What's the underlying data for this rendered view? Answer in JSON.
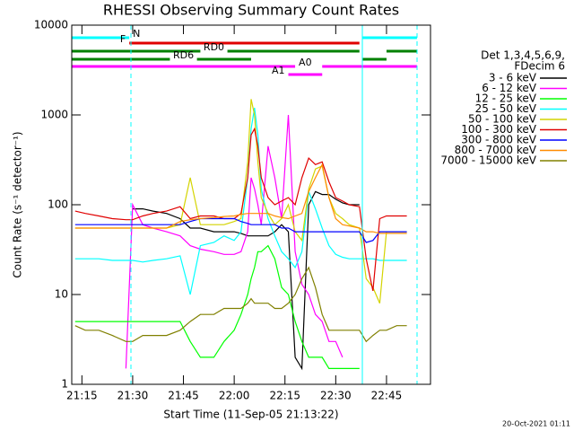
{
  "chart_data": {
    "type": "line",
    "title": "RHESSI Observing Summary Count Rates",
    "x_label": "Start Time (11-Sep-05 21:13:22)",
    "y_label": "Count Rate (s⁻¹ detector⁻¹)",
    "footer": "20-Oct-2021 01:11",
    "legend_title": [
      "Det 1,3,4,5,6,9,",
      "FDecim 6"
    ],
    "log_y": true,
    "xlim": [
      "21:12",
      "22:58"
    ],
    "xticks": [
      "21:15",
      "21:30",
      "21:45",
      "22:00",
      "22:15",
      "22:30",
      "22:45"
    ],
    "ylim": [
      1,
      10000
    ],
    "yticks": [
      1,
      10,
      100,
      1000,
      10000
    ],
    "x": [
      "21:13",
      "21:16",
      "21:20",
      "21:24",
      "21:28",
      "21:30",
      "21:33",
      "21:36",
      "21:40",
      "21:44",
      "21:47",
      "21:50",
      "21:54",
      "21:57",
      "22:00",
      "22:02",
      "22:04",
      "22:05",
      "22:06",
      "22:07",
      "22:08",
      "22:10",
      "22:12",
      "22:14",
      "22:16",
      "22:18",
      "22:20",
      "22:22",
      "22:24",
      "22:26",
      "22:28",
      "22:30",
      "22:32",
      "22:34",
      "22:37",
      "22:39",
      "22:41",
      "22:43",
      "22:45",
      "22:48",
      "22:51"
    ],
    "series": [
      {
        "name": "3 - 6 keV",
        "color": "#000000",
        "values": [
          null,
          null,
          null,
          null,
          null,
          90,
          90,
          85,
          80,
          70,
          55,
          55,
          50,
          50,
          50,
          48,
          45,
          45,
          45,
          45,
          45,
          45,
          50,
          60,
          50,
          2,
          1.5,
          100,
          140,
          130,
          130,
          115,
          105,
          100,
          100,
          null,
          null,
          null,
          null,
          null,
          null
        ]
      },
      {
        "name": "6 - 12 keV",
        "color": "#ff00ff",
        "values": [
          null,
          null,
          null,
          null,
          1.5,
          100,
          60,
          55,
          50,
          45,
          35,
          32,
          30,
          28,
          28,
          30,
          50,
          200,
          150,
          100,
          60,
          450,
          200,
          70,
          1000,
          30,
          13,
          10,
          6,
          5,
          3,
          3,
          2,
          null,
          null,
          null,
          null,
          null,
          null,
          null,
          null
        ]
      },
      {
        "name": "12 - 25 keV",
        "color": "#00ff00",
        "values": [
          5,
          5,
          5,
          5,
          5,
          5,
          5,
          5,
          5,
          5,
          3,
          2,
          2,
          3,
          4,
          6,
          10,
          15,
          20,
          30,
          30,
          35,
          25,
          12,
          10,
          5,
          3,
          2,
          2,
          2,
          1.5,
          1.5,
          1.5,
          1.5,
          1.5,
          null,
          null,
          null,
          null,
          null,
          null
        ]
      },
      {
        "name": "25 - 50 keV",
        "color": "#00ffff",
        "values": [
          25,
          25,
          25,
          24,
          24,
          24,
          23,
          24,
          25,
          27,
          10,
          35,
          38,
          45,
          40,
          50,
          200,
          700,
          1200,
          600,
          150,
          70,
          45,
          30,
          25,
          20,
          30,
          140,
          90,
          55,
          35,
          28,
          26,
          25,
          25,
          25,
          25,
          24,
          24,
          24,
          24
        ]
      },
      {
        "name": "50 - 100 keV",
        "color": "#d4d400",
        "values": [
          55,
          55,
          55,
          55,
          55,
          55,
          55,
          55,
          55,
          60,
          200,
          60,
          60,
          60,
          65,
          70,
          300,
          1500,
          1000,
          300,
          120,
          80,
          60,
          70,
          100,
          50,
          40,
          150,
          250,
          270,
          120,
          80,
          70,
          60,
          55,
          15,
          12,
          8,
          50,
          50,
          50
        ]
      },
      {
        "name": "100 - 300 keV",
        "color": "#e00000",
        "values": [
          85,
          80,
          75,
          70,
          68,
          68,
          75,
          80,
          85,
          95,
          70,
          75,
          75,
          70,
          70,
          80,
          200,
          600,
          700,
          450,
          200,
          120,
          100,
          110,
          120,
          100,
          200,
          330,
          280,
          300,
          180,
          120,
          110,
          100,
          95,
          25,
          11,
          70,
          75,
          75,
          75
        ]
      },
      {
        "name": "300 - 800 keV",
        "color": "#0000ff",
        "values": [
          60,
          60,
          60,
          60,
          60,
          60,
          60,
          60,
          60,
          60,
          65,
          70,
          70,
          70,
          70,
          65,
          62,
          60,
          60,
          60,
          60,
          60,
          60,
          55,
          55,
          50,
          50,
          50,
          50,
          50,
          50,
          50,
          50,
          50,
          50,
          38,
          40,
          50,
          50,
          50,
          50
        ]
      },
      {
        "name": "800 - 7000 keV",
        "color": "#ff8c00",
        "values": [
          55,
          55,
          55,
          55,
          55,
          55,
          55,
          55,
          55,
          65,
          68,
          70,
          72,
          74,
          75,
          78,
          80,
          80,
          80,
          80,
          80,
          80,
          75,
          72,
          70,
          75,
          80,
          140,
          200,
          280,
          120,
          70,
          60,
          58,
          55,
          50,
          50,
          48,
          48,
          48,
          48
        ]
      },
      {
        "name": "7000 - 15000 keV",
        "color": "#808000",
        "values": [
          4.5,
          4,
          4,
          3.5,
          3,
          3,
          3.5,
          3.5,
          3.5,
          4,
          5,
          6,
          6,
          7,
          7,
          7,
          8,
          9,
          8,
          8,
          8,
          8,
          7,
          7,
          8,
          10,
          15,
          20,
          12,
          6,
          4,
          4,
          4,
          4,
          4,
          3,
          3.5,
          4,
          4,
          4.5,
          4.5
        ]
      }
    ],
    "flags": [
      {
        "name": "N",
        "color": "#00ffff",
        "intervals": [
          [
            "21:12",
            "21:29"
          ],
          [
            "22:38",
            "22:54"
          ]
        ]
      },
      {
        "name": "F",
        "color": "#e00000",
        "intervals": [
          [
            "21:29",
            "22:37"
          ]
        ]
      },
      {
        "name": "RD0",
        "color": "#008000",
        "intervals": [
          [
            "21:12",
            "21:50"
          ],
          [
            "21:58",
            "22:37"
          ],
          [
            "22:45",
            "22:54"
          ]
        ]
      },
      {
        "name": "RD6",
        "color": "#008000",
        "intervals": [
          [
            "21:12",
            "21:41"
          ],
          [
            "21:49",
            "22:05"
          ],
          [
            "22:38",
            "22:45"
          ]
        ]
      },
      {
        "name": "A0",
        "color": "#ff00ff",
        "intervals": [
          [
            "21:12",
            "22:18"
          ],
          [
            "22:26",
            "22:54"
          ]
        ]
      },
      {
        "name": "A1",
        "color": "#ff00ff",
        "intervals": [
          [
            "22:16",
            "22:26"
          ]
        ]
      }
    ]
  }
}
